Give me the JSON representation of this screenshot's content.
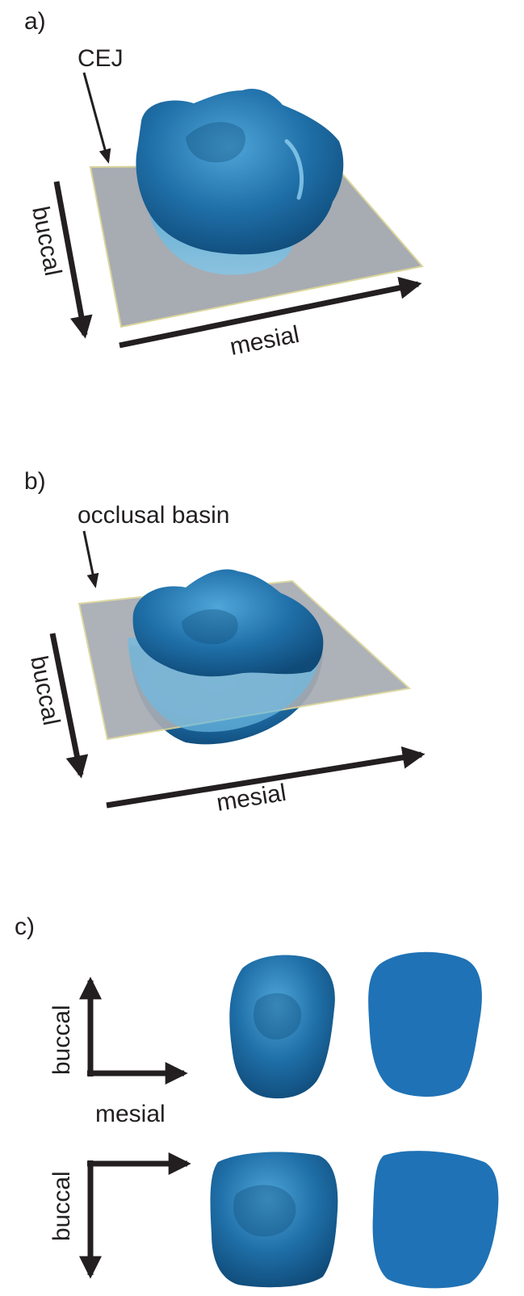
{
  "panels": {
    "a": {
      "label": "a)",
      "callout": "CEJ",
      "axis_vertical": "buccal",
      "axis_horizontal": "mesial"
    },
    "b": {
      "label": "b)",
      "callout": "occlusal basin",
      "axis_vertical": "buccal",
      "axis_horizontal": "mesial"
    },
    "c": {
      "label": "c)",
      "row1": {
        "axis_vertical": "buccal",
        "axis_horizontal": "mesial"
      },
      "row2": {
        "axis_vertical": "buccal"
      }
    }
  },
  "colors": {
    "tooth": "#1f6fa8",
    "tooth_highlight": "#4fa6d8",
    "tooth_shadow": "#0f4a78",
    "plane": "#a7abb2",
    "plane_edge": "#d8d49a",
    "outline_fill": "#1f72b5",
    "arrow": "#231f20"
  }
}
